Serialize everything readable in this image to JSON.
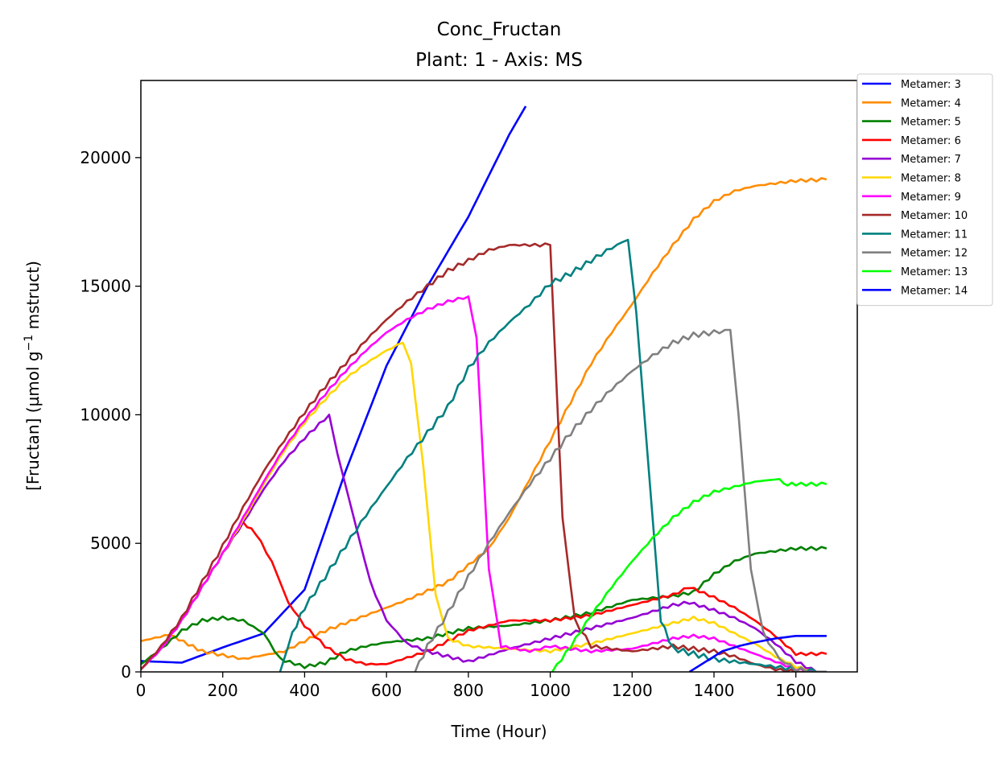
{
  "chart_data": {
    "type": "line",
    "title": "Conc_Fructan",
    "subtitle": "Plant: 1 - Axis: MS",
    "xlabel": "Time (Hour)",
    "ylabel_parts": [
      "[Fructan] (µmol g",
      "−1",
      " mstruct)"
    ],
    "xlim": [
      0,
      1750
    ],
    "ylim": [
      0,
      23000
    ],
    "xticks": [
      0,
      200,
      400,
      600,
      800,
      1000,
      1200,
      1400,
      1600
    ],
    "yticks": [
      0,
      5000,
      10000,
      15000,
      20000
    ],
    "grid": false,
    "legend_position": "outside-top-right",
    "series": [
      {
        "name": "Metamer: 3",
        "color": "#0000ff",
        "wiggle": 0,
        "points": [
          [
            0,
            420
          ],
          [
            100,
            360
          ],
          [
            200,
            950
          ],
          [
            300,
            1500
          ],
          [
            400,
            3200
          ],
          [
            500,
            7800
          ],
          [
            600,
            11900
          ],
          [
            700,
            15000
          ],
          [
            800,
            17700
          ],
          [
            900,
            20900
          ],
          [
            940,
            22000
          ]
        ]
      },
      {
        "name": "Metamer: 4",
        "color": "#ff8c00",
        "wiggle": 60,
        "points": [
          [
            0,
            1200
          ],
          [
            70,
            1450
          ],
          [
            150,
            800
          ],
          [
            250,
            500
          ],
          [
            350,
            800
          ],
          [
            450,
            1600
          ],
          [
            550,
            2200
          ],
          [
            650,
            2800
          ],
          [
            750,
            3500
          ],
          [
            850,
            4800
          ],
          [
            900,
            6000
          ],
          [
            950,
            7500
          ],
          [
            1000,
            9000
          ],
          [
            1050,
            10500
          ],
          [
            1100,
            12000
          ],
          [
            1150,
            13200
          ],
          [
            1200,
            14300
          ],
          [
            1250,
            15500
          ],
          [
            1300,
            16600
          ],
          [
            1350,
            17600
          ],
          [
            1400,
            18300
          ],
          [
            1450,
            18700
          ],
          [
            1500,
            18900
          ],
          [
            1550,
            19000
          ],
          [
            1600,
            19100
          ],
          [
            1675,
            19150
          ]
        ]
      },
      {
        "name": "Metamer: 5",
        "color": "#008000",
        "wiggle": 60,
        "points": [
          [
            0,
            300
          ],
          [
            50,
            900
          ],
          [
            100,
            1600
          ],
          [
            150,
            2000
          ],
          [
            200,
            2100
          ],
          [
            250,
            2000
          ],
          [
            300,
            1500
          ],
          [
            340,
            500
          ],
          [
            400,
            200
          ],
          [
            450,
            350
          ],
          [
            500,
            800
          ],
          [
            550,
            1000
          ],
          [
            600,
            1150
          ],
          [
            700,
            1300
          ],
          [
            800,
            1700
          ],
          [
            900,
            1800
          ],
          [
            1000,
            2000
          ],
          [
            1100,
            2300
          ],
          [
            1200,
            2800
          ],
          [
            1300,
            2950
          ],
          [
            1350,
            3100
          ],
          [
            1400,
            3800
          ],
          [
            1450,
            4300
          ],
          [
            1500,
            4600
          ],
          [
            1550,
            4700
          ],
          [
            1600,
            4800
          ],
          [
            1675,
            4800
          ]
        ]
      },
      {
        "name": "Metamer: 6",
        "color": "#ff0000",
        "wiggle": 50,
        "points": [
          [
            0,
            100
          ],
          [
            50,
            900
          ],
          [
            100,
            2000
          ],
          [
            150,
            3300
          ],
          [
            200,
            4600
          ],
          [
            250,
            5800
          ],
          [
            280,
            5400
          ],
          [
            320,
            4300
          ],
          [
            360,
            2700
          ],
          [
            400,
            1800
          ],
          [
            450,
            1000
          ],
          [
            500,
            500
          ],
          [
            550,
            300
          ],
          [
            600,
            300
          ],
          [
            700,
            800
          ],
          [
            800,
            1600
          ],
          [
            900,
            2000
          ],
          [
            1000,
            2000
          ],
          [
            1100,
            2200
          ],
          [
            1200,
            2600
          ],
          [
            1300,
            3000
          ],
          [
            1340,
            3300
          ],
          [
            1400,
            2900
          ],
          [
            1450,
            2500
          ],
          [
            1500,
            2000
          ],
          [
            1550,
            1400
          ],
          [
            1600,
            700
          ],
          [
            1675,
            700
          ]
        ]
      },
      {
        "name": "Metamer: 7",
        "color": "#9400d3",
        "wiggle": 60,
        "points": [
          [
            0,
            100
          ],
          [
            50,
            900
          ],
          [
            100,
            2000
          ],
          [
            150,
            3300
          ],
          [
            200,
            4600
          ],
          [
            250,
            5800
          ],
          [
            300,
            7100
          ],
          [
            350,
            8200
          ],
          [
            400,
            9100
          ],
          [
            460,
            10000
          ],
          [
            480,
            8500
          ],
          [
            520,
            6000
          ],
          [
            560,
            3500
          ],
          [
            600,
            2000
          ],
          [
            650,
            1100
          ],
          [
            700,
            800
          ],
          [
            800,
            400
          ],
          [
            900,
            900
          ],
          [
            1000,
            1300
          ],
          [
            1100,
            1700
          ],
          [
            1200,
            2100
          ],
          [
            1300,
            2600
          ],
          [
            1340,
            2700
          ],
          [
            1400,
            2400
          ],
          [
            1450,
            2100
          ],
          [
            1500,
            1700
          ],
          [
            1550,
            1100
          ],
          [
            1600,
            400
          ],
          [
            1650,
            0
          ],
          [
            1675,
            0
          ]
        ]
      },
      {
        "name": "Metamer: 8",
        "color": "#ffd700",
        "wiggle": 50,
        "points": [
          [
            0,
            100
          ],
          [
            50,
            900
          ],
          [
            100,
            2000
          ],
          [
            150,
            3300
          ],
          [
            200,
            4600
          ],
          [
            250,
            5900
          ],
          [
            300,
            7300
          ],
          [
            350,
            8600
          ],
          [
            400,
            9700
          ],
          [
            450,
            10600
          ],
          [
            500,
            11400
          ],
          [
            550,
            12000
          ],
          [
            600,
            12500
          ],
          [
            640,
            12800
          ],
          [
            660,
            12000
          ],
          [
            690,
            8000
          ],
          [
            720,
            3000
          ],
          [
            750,
            1300
          ],
          [
            800,
            1000
          ],
          [
            900,
            900
          ],
          [
            1000,
            800
          ],
          [
            1100,
            1100
          ],
          [
            1200,
            1500
          ],
          [
            1300,
            1900
          ],
          [
            1350,
            2100
          ],
          [
            1400,
            1900
          ],
          [
            1450,
            1500
          ],
          [
            1500,
            1100
          ],
          [
            1550,
            600
          ],
          [
            1600,
            200
          ],
          [
            1650,
            0
          ],
          [
            1675,
            0
          ]
        ]
      },
      {
        "name": "Metamer: 9",
        "color": "#ff00ff",
        "wiggle": 50,
        "points": [
          [
            0,
            100
          ],
          [
            50,
            900
          ],
          [
            100,
            2000
          ],
          [
            150,
            3300
          ],
          [
            200,
            4600
          ],
          [
            250,
            6000
          ],
          [
            300,
            7400
          ],
          [
            350,
            8700
          ],
          [
            400,
            9800
          ],
          [
            450,
            10800
          ],
          [
            500,
            11700
          ],
          [
            550,
            12500
          ],
          [
            600,
            13200
          ],
          [
            650,
            13700
          ],
          [
            700,
            14100
          ],
          [
            750,
            14400
          ],
          [
            800,
            14600
          ],
          [
            820,
            13000
          ],
          [
            850,
            4000
          ],
          [
            880,
            1000
          ],
          [
            950,
            800
          ],
          [
            1000,
            1000
          ],
          [
            1100,
            800
          ],
          [
            1200,
            900
          ],
          [
            1300,
            1300
          ],
          [
            1350,
            1400
          ],
          [
            1400,
            1300
          ],
          [
            1450,
            1000
          ],
          [
            1500,
            700
          ],
          [
            1550,
            400
          ],
          [
            1600,
            100
          ],
          [
            1650,
            0
          ],
          [
            1675,
            0
          ]
        ]
      },
      {
        "name": "Metamer: 10",
        "color": "#a52a2a",
        "wiggle": 80,
        "points": [
          [
            0,
            100
          ],
          [
            50,
            1000
          ],
          [
            100,
            2100
          ],
          [
            150,
            3500
          ],
          [
            200,
            4900
          ],
          [
            250,
            6400
          ],
          [
            300,
            7800
          ],
          [
            350,
            9000
          ],
          [
            400,
            10100
          ],
          [
            450,
            11100
          ],
          [
            500,
            12000
          ],
          [
            550,
            12900
          ],
          [
            600,
            13700
          ],
          [
            650,
            14400
          ],
          [
            700,
            15000
          ],
          [
            750,
            15600
          ],
          [
            800,
            16000
          ],
          [
            850,
            16400
          ],
          [
            900,
            16600
          ],
          [
            1000,
            16600
          ],
          [
            1010,
            13000
          ],
          [
            1030,
            6000
          ],
          [
            1060,
            2000
          ],
          [
            1100,
            1000
          ],
          [
            1200,
            800
          ],
          [
            1300,
            1000
          ],
          [
            1400,
            800
          ],
          [
            1450,
            600
          ],
          [
            1500,
            300
          ],
          [
            1550,
            100
          ],
          [
            1600,
            0
          ],
          [
            1675,
            0
          ]
        ]
      },
      {
        "name": "Metamer: 11",
        "color": "#008080",
        "wiggle": 100,
        "points": [
          [
            340,
            0
          ],
          [
            370,
            1500
          ],
          [
            400,
            2500
          ],
          [
            450,
            3700
          ],
          [
            500,
            4900
          ],
          [
            550,
            6100
          ],
          [
            600,
            7200
          ],
          [
            650,
            8300
          ],
          [
            700,
            9300
          ],
          [
            750,
            10300
          ],
          [
            800,
            11800
          ],
          [
            850,
            12800
          ],
          [
            900,
            13600
          ],
          [
            950,
            14300
          ],
          [
            1000,
            15100
          ],
          [
            1050,
            15500
          ],
          [
            1100,
            16000
          ],
          [
            1150,
            16500
          ],
          [
            1190,
            16800
          ],
          [
            1210,
            14000
          ],
          [
            1240,
            8000
          ],
          [
            1270,
            2000
          ],
          [
            1300,
            900
          ],
          [
            1400,
            500
          ],
          [
            1450,
            400
          ],
          [
            1500,
            300
          ],
          [
            1550,
            200
          ],
          [
            1600,
            100
          ],
          [
            1650,
            0
          ],
          [
            1675,
            0
          ]
        ]
      },
      {
        "name": "Metamer: 12",
        "color": "#808080",
        "wiggle": 100,
        "points": [
          [
            670,
            0
          ],
          [
            700,
            1000
          ],
          [
            750,
            2300
          ],
          [
            800,
            3700
          ],
          [
            850,
            5000
          ],
          [
            900,
            6200
          ],
          [
            950,
            7300
          ],
          [
            1000,
            8300
          ],
          [
            1050,
            9300
          ],
          [
            1100,
            10200
          ],
          [
            1150,
            11000
          ],
          [
            1200,
            11700
          ],
          [
            1250,
            12300
          ],
          [
            1300,
            12800
          ],
          [
            1350,
            13100
          ],
          [
            1400,
            13200
          ],
          [
            1440,
            13300
          ],
          [
            1460,
            10000
          ],
          [
            1490,
            4000
          ],
          [
            1520,
            1500
          ],
          [
            1560,
            500
          ],
          [
            1600,
            100
          ],
          [
            1640,
            0
          ],
          [
            1675,
            0
          ]
        ]
      },
      {
        "name": "Metamer: 13",
        "color": "#00ff00",
        "wiggle": 60,
        "points": [
          [
            1005,
            0
          ],
          [
            1050,
            1000
          ],
          [
            1100,
            2200
          ],
          [
            1150,
            3300
          ],
          [
            1200,
            4300
          ],
          [
            1250,
            5200
          ],
          [
            1300,
            6000
          ],
          [
            1350,
            6600
          ],
          [
            1400,
            7000
          ],
          [
            1450,
            7200
          ],
          [
            1500,
            7400
          ],
          [
            1560,
            7500
          ],
          [
            1570,
            7300
          ],
          [
            1600,
            7300
          ],
          [
            1675,
            7300
          ]
        ]
      },
      {
        "name": "Metamer: 14",
        "color": "#0000ff",
        "wiggle": 0,
        "points": [
          [
            1340,
            0
          ],
          [
            1380,
            400
          ],
          [
            1420,
            800
          ],
          [
            1460,
            1000
          ],
          [
            1500,
            1150
          ],
          [
            1550,
            1300
          ],
          [
            1600,
            1400
          ],
          [
            1675,
            1400
          ]
        ]
      }
    ]
  }
}
